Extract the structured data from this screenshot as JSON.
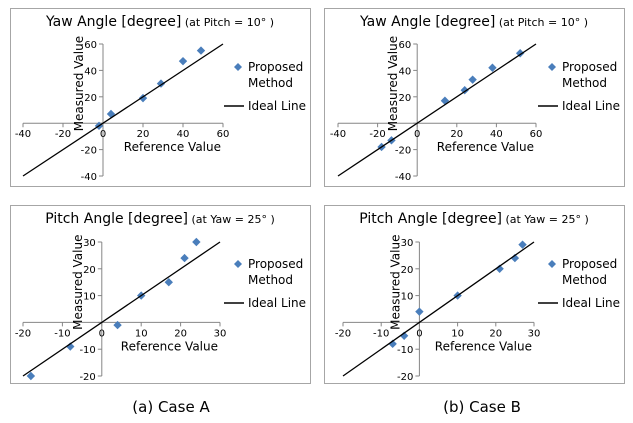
{
  "captions": [
    "(a) Case A",
    "(b) Case B"
  ],
  "chart_data": [
    {
      "type": "scatter",
      "title_main": "Yaw Angle [degree]",
      "title_sub": " (at Pitch = 10° )",
      "xlabel": "Reference Value",
      "ylabel": "Measured Value",
      "xlim": [
        -40,
        60
      ],
      "ylim": [
        -40,
        60
      ],
      "xticks": [
        -40,
        -20,
        0,
        20,
        40,
        60
      ],
      "yticks": [
        -40,
        -20,
        0,
        20,
        40,
        60
      ],
      "grid": false,
      "legend_position": "right",
      "series": [
        {
          "name": "Proposed Method",
          "marker": "diamond",
          "color": "#4a7ebb",
          "x": [
            -2,
            4,
            20,
            29,
            40,
            49
          ],
          "y": [
            -2,
            7,
            19,
            30,
            47,
            55
          ]
        },
        {
          "name": "Ideal Line",
          "kind": "line",
          "color": "#000000",
          "x": [
            -40,
            60
          ],
          "y": [
            -40,
            60
          ]
        }
      ]
    },
    {
      "type": "scatter",
      "title_main": "Yaw Angle [degree]",
      "title_sub": " (at Pitch = 10° )",
      "xlabel": "Reference Value",
      "ylabel": "Measured Value",
      "xlim": [
        -40,
        60
      ],
      "ylim": [
        -40,
        60
      ],
      "xticks": [
        -40,
        -20,
        0,
        20,
        40,
        60
      ],
      "yticks": [
        -40,
        -20,
        0,
        20,
        40,
        60
      ],
      "grid": false,
      "legend_position": "right",
      "series": [
        {
          "name": "Proposed Method",
          "marker": "diamond",
          "color": "#4a7ebb",
          "x": [
            -18,
            -13,
            14,
            24,
            28,
            38,
            52
          ],
          "y": [
            -18,
            -13,
            17,
            25,
            33,
            42,
            53
          ]
        },
        {
          "name": "Ideal Line",
          "kind": "line",
          "color": "#000000",
          "x": [
            -40,
            60
          ],
          "y": [
            -40,
            60
          ]
        }
      ]
    },
    {
      "type": "scatter",
      "title_main": "Pitch Angle [degree]",
      "title_sub": " (at Yaw = 25° )",
      "xlabel": "Reference Value",
      "ylabel": "Measured Value",
      "xlim": [
        -20,
        30
      ],
      "ylim": [
        -20,
        30
      ],
      "xticks": [
        -20,
        -10,
        0,
        10,
        20,
        30
      ],
      "yticks": [
        -20,
        -10,
        0,
        10,
        20,
        30
      ],
      "grid": false,
      "legend_position": "right",
      "series": [
        {
          "name": "Proposed Method",
          "marker": "diamond",
          "color": "#4a7ebb",
          "x": [
            -18,
            -8,
            4,
            10,
            17,
            21,
            24
          ],
          "y": [
            -20,
            -9,
            -1,
            10,
            15,
            24,
            30
          ]
        },
        {
          "name": "Ideal Line",
          "kind": "line",
          "color": "#000000",
          "x": [
            -20,
            30
          ],
          "y": [
            -20,
            30
          ]
        }
      ]
    },
    {
      "type": "scatter",
      "title_main": "Pitch Angle [degree]",
      "title_sub": " (at Yaw = 25° )",
      "xlabel": "Reference Value",
      "ylabel": "Measured Value",
      "xlim": [
        -20,
        30
      ],
      "ylim": [
        -20,
        30
      ],
      "xticks": [
        -20,
        -10,
        0,
        10,
        20,
        30
      ],
      "yticks": [
        -20,
        -10,
        0,
        10,
        20,
        30
      ],
      "grid": false,
      "legend_position": "right",
      "series": [
        {
          "name": "Proposed Method",
          "marker": "diamond",
          "color": "#4a7ebb",
          "x": [
            -7,
            -4,
            0,
            10,
            21,
            25,
            27
          ],
          "y": [
            -8,
            -5,
            4,
            10,
            20,
            24,
            29
          ]
        },
        {
          "name": "Ideal Line",
          "kind": "line",
          "color": "#000000",
          "x": [
            -20,
            30
          ],
          "y": [
            -20,
            30
          ]
        }
      ]
    }
  ]
}
